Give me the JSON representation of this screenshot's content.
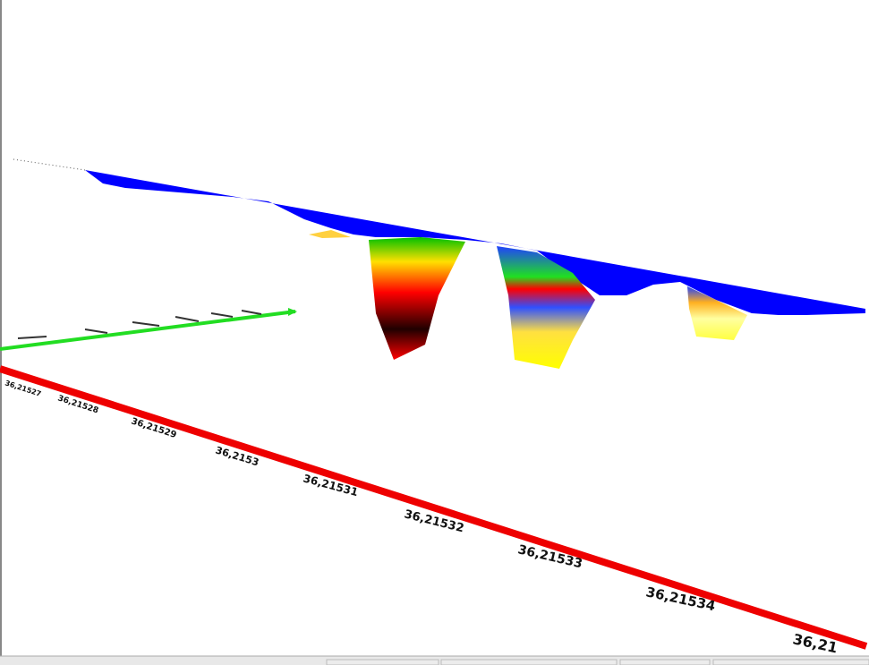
{
  "axis_labels": [
    "36,21527",
    "36,21528",
    "36,21529",
    "36,2153",
    "36,21531",
    "36,21532",
    "36,21533",
    "36,21534",
    "36,21"
  ]
}
